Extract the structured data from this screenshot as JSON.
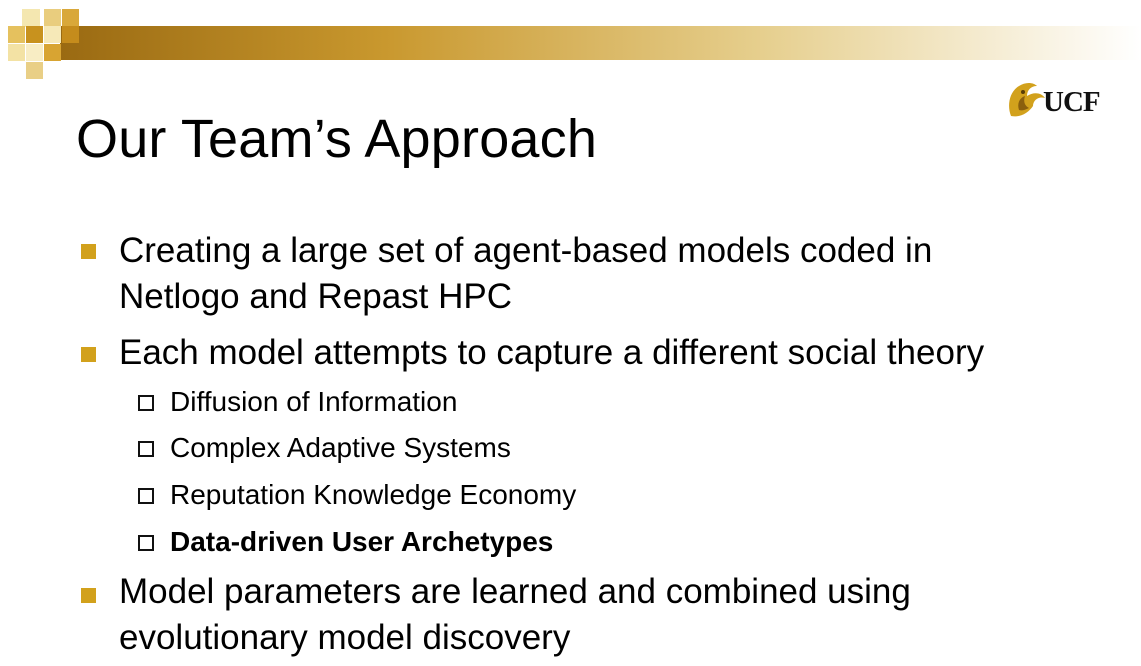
{
  "slide": {
    "title": "Our Team’s Approach",
    "logo": {
      "icon": "pegasus-logo-icon",
      "text": "UCF",
      "color": "#d2a11c"
    },
    "accent_color": "#d2a11c",
    "bullets": [
      {
        "line1": "Creating a large set of agent-based models coded in",
        "line2": "Netlogo and Repast HPC"
      },
      {
        "line1": "Each model attempts to capture a different social theory",
        "subitems": [
          "Diffusion of Information",
          "Complex Adaptive Systems",
          "Reputation Knowledge Economy",
          "Data-driven User Archetypes"
        ]
      },
      {
        "line1": "Model parameters are learned and combined using",
        "line2": "evolutionary model discovery"
      }
    ]
  }
}
